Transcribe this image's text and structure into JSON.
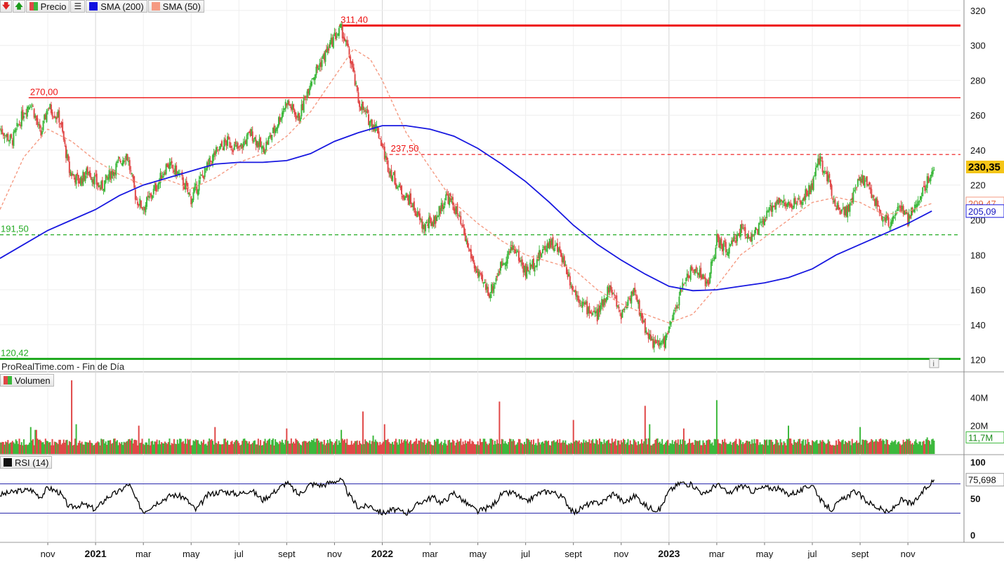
{
  "legend": {
    "price_label": "Precio",
    "sma200_label": "SMA (200)",
    "sma50_label": "SMA (50)"
  },
  "watermark": "ProRealTime.com - Fin de Día",
  "volume_label": "Volumen",
  "rsi_label": "RSI (14)",
  "colors": {
    "up": "#3cb83c",
    "down": "#e04848",
    "sma200": "#1818e0",
    "sma50": "#f59a82",
    "resistance_high": "#ee1111",
    "support_low": "#22aa22",
    "rsi_line": "#000000",
    "rsi_band": "#2222aa"
  },
  "chart_data": {
    "type": "line",
    "price_axis": {
      "ticks": [
        120,
        140,
        160,
        180,
        200,
        220,
        240,
        260,
        280,
        300,
        320
      ],
      "tick_labels": [
        "120",
        "140",
        "160",
        "180",
        "200",
        "220",
        "240",
        "260",
        "280",
        "300",
        "320"
      ],
      "ylim": [
        117,
        326
      ]
    },
    "x_axis": {
      "months": [
        {
          "label": "nov",
          "bold": false,
          "t": 2
        },
        {
          "label": "2021",
          "bold": true,
          "t": 4
        },
        {
          "label": "mar",
          "bold": false,
          "t": 6
        },
        {
          "label": "may",
          "bold": false,
          "t": 8
        },
        {
          "label": "jul",
          "bold": false,
          "t": 10
        },
        {
          "label": "sept",
          "bold": false,
          "t": 12
        },
        {
          "label": "nov",
          "bold": false,
          "t": 14
        },
        {
          "label": "2022",
          "bold": true,
          "t": 16
        },
        {
          "label": "mar",
          "bold": false,
          "t": 18
        },
        {
          "label": "may",
          "bold": false,
          "t": 20
        },
        {
          "label": "jul",
          "bold": false,
          "t": 22
        },
        {
          "label": "sept",
          "bold": false,
          "t": 24
        },
        {
          "label": "nov",
          "bold": false,
          "t": 26
        },
        {
          "label": "2023",
          "bold": true,
          "t": 28
        },
        {
          "label": "mar",
          "bold": false,
          "t": 30
        },
        {
          "label": "may",
          "bold": false,
          "t": 32
        },
        {
          "label": "jul",
          "bold": false,
          "t": 34
        },
        {
          "label": "sept",
          "bold": false,
          "t": 36
        },
        {
          "label": "nov",
          "bold": false,
          "t": 38
        }
      ],
      "range_months": [
        0,
        40.2
      ]
    },
    "levels": [
      {
        "value": 311.4,
        "label": "311,40",
        "style": "solid-thick",
        "color": "#ee1111",
        "start_t": 14.2
      },
      {
        "value": 270.0,
        "label": "270,00",
        "style": "solid",
        "color": "#ee1111",
        "start_t": 1.2
      },
      {
        "value": 237.5,
        "label": "237,50",
        "style": "dashed",
        "color": "#ee1111",
        "start_t": 16.3
      },
      {
        "value": 191.5,
        "label": "191,50",
        "style": "dashed",
        "color": "#22aa22",
        "start_t": 0
      },
      {
        "value": 120.42,
        "label": "120,42",
        "style": "solid-thick",
        "color": "#22aa22",
        "start_t": 0
      }
    ],
    "price_path": [
      [
        0,
        252
      ],
      [
        0.5,
        245
      ],
      [
        1.0,
        262
      ],
      [
        1.3,
        268
      ],
      [
        1.7,
        248
      ],
      [
        2.0,
        265
      ],
      [
        2.5,
        258
      ],
      [
        2.9,
        228
      ],
      [
        3.3,
        222
      ],
      [
        3.7,
        228
      ],
      [
        4.2,
        218
      ],
      [
        4.7,
        228
      ],
      [
        5.3,
        238
      ],
      [
        5.7,
        212
      ],
      [
        6.0,
        207
      ],
      [
        6.5,
        218
      ],
      [
        7.0,
        232
      ],
      [
        7.5,
        226
      ],
      [
        8.0,
        212
      ],
      [
        8.5,
        226
      ],
      [
        9.0,
        238
      ],
      [
        9.5,
        245
      ],
      [
        10.0,
        240
      ],
      [
        10.5,
        250
      ],
      [
        11.0,
        240
      ],
      [
        11.5,
        252
      ],
      [
        12.0,
        268
      ],
      [
        12.5,
        258
      ],
      [
        13.0,
        280
      ],
      [
        13.5,
        292
      ],
      [
        14.0,
        305
      ],
      [
        14.3,
        309
      ],
      [
        14.7,
        290
      ],
      [
        15.0,
        268
      ],
      [
        15.4,
        258
      ],
      [
        15.8,
        252
      ],
      [
        16.2,
        232
      ],
      [
        16.7,
        218
      ],
      [
        17.2,
        210
      ],
      [
        17.7,
        196
      ],
      [
        18.2,
        200
      ],
      [
        18.7,
        214
      ],
      [
        19.1,
        205
      ],
      [
        19.5,
        188
      ],
      [
        20.0,
        168
      ],
      [
        20.5,
        158
      ],
      [
        21.0,
        175
      ],
      [
        21.5,
        185
      ],
      [
        22.0,
        170
      ],
      [
        22.5,
        178
      ],
      [
        23.0,
        188
      ],
      [
        23.5,
        180
      ],
      [
        24.0,
        160
      ],
      [
        24.5,
        150
      ],
      [
        25.0,
        145
      ],
      [
        25.5,
        162
      ],
      [
        26.0,
        146
      ],
      [
        26.5,
        160
      ],
      [
        27.0,
        138
      ],
      [
        27.4,
        128
      ],
      [
        27.8,
        130
      ],
      [
        28.2,
        145
      ],
      [
        28.7,
        168
      ],
      [
        29.2,
        172
      ],
      [
        29.6,
        162
      ],
      [
        30.0,
        188
      ],
      [
        30.5,
        182
      ],
      [
        31.0,
        195
      ],
      [
        31.5,
        190
      ],
      [
        32.0,
        200
      ],
      [
        32.5,
        212
      ],
      [
        33.0,
        208
      ],
      [
        33.5,
        210
      ],
      [
        34.0,
        220
      ],
      [
        34.3,
        235
      ],
      [
        34.7,
        222
      ],
      [
        35.0,
        208
      ],
      [
        35.5,
        205
      ],
      [
        36.0,
        225
      ],
      [
        36.4,
        218
      ],
      [
        36.8,
        205
      ],
      [
        37.2,
        198
      ],
      [
        37.6,
        208
      ],
      [
        38.0,
        200
      ],
      [
        38.4,
        210
      ],
      [
        38.8,
        222
      ],
      [
        39.1,
        230.35
      ]
    ],
    "sma200_path": [
      [
        0,
        178
      ],
      [
        1,
        186
      ],
      [
        2,
        194
      ],
      [
        3,
        200
      ],
      [
        4,
        206
      ],
      [
        5,
        214
      ],
      [
        6,
        220
      ],
      [
        7,
        224
      ],
      [
        8,
        228
      ],
      [
        9,
        232
      ],
      [
        10,
        233
      ],
      [
        11,
        233
      ],
      [
        12,
        234
      ],
      [
        13,
        238
      ],
      [
        14,
        245
      ],
      [
        15,
        250
      ],
      [
        16,
        254
      ],
      [
        17,
        254
      ],
      [
        18,
        252
      ],
      [
        19,
        248
      ],
      [
        20,
        241
      ],
      [
        21,
        232
      ],
      [
        22,
        222
      ],
      [
        23,
        210
      ],
      [
        24,
        197
      ],
      [
        25,
        186
      ],
      [
        26,
        177
      ],
      [
        27,
        169
      ],
      [
        28,
        162
      ],
      [
        29,
        159.5
      ],
      [
        30,
        160
      ],
      [
        31,
        162
      ],
      [
        32,
        164
      ],
      [
        33,
        167
      ],
      [
        34,
        172
      ],
      [
        35,
        180
      ],
      [
        36,
        186
      ],
      [
        37,
        192
      ],
      [
        38,
        198
      ],
      [
        39,
        205.09
      ]
    ],
    "sma50_path": [
      [
        0,
        206
      ],
      [
        1,
        236
      ],
      [
        2,
        252
      ],
      [
        3,
        245
      ],
      [
        4,
        234
      ],
      [
        5,
        226
      ],
      [
        6,
        220
      ],
      [
        7,
        223
      ],
      [
        8,
        218
      ],
      [
        9,
        224
      ],
      [
        10,
        233
      ],
      [
        11,
        238
      ],
      [
        12,
        248
      ],
      [
        13,
        262
      ],
      [
        14,
        282
      ],
      [
        14.8,
        298
      ],
      [
        15.5,
        292
      ],
      [
        16,
        280
      ],
      [
        17,
        250
      ],
      [
        18,
        230
      ],
      [
        19,
        210
      ],
      [
        20,
        198
      ],
      [
        21,
        188
      ],
      [
        22,
        180
      ],
      [
        23,
        176
      ],
      [
        24,
        172
      ],
      [
        25,
        160
      ],
      [
        26,
        152
      ],
      [
        27,
        146
      ],
      [
        28,
        141
      ],
      [
        29,
        146
      ],
      [
        30,
        162
      ],
      [
        31,
        180
      ],
      [
        32,
        190
      ],
      [
        33,
        200
      ],
      [
        34,
        210
      ],
      [
        35,
        213
      ],
      [
        36,
        210
      ],
      [
        37,
        203
      ],
      [
        38,
        205
      ],
      [
        39,
        209.47
      ]
    ],
    "last_price": {
      "value": 230.35,
      "label": "230,35"
    },
    "sma50_last": {
      "value": 209.47,
      "label": "209,47"
    },
    "sma200_last": {
      "value": 205.09,
      "label": "205,09"
    },
    "volume": {
      "ticks": [
        20,
        40
      ],
      "tick_labels": [
        "20M",
        "40M"
      ],
      "ylim": [
        0,
        56
      ],
      "spikes": [
        [
          1.3,
          19
        ],
        [
          1.5,
          17
        ],
        [
          2.5,
          10
        ],
        [
          2.8,
          10
        ],
        [
          3.0,
          52
        ],
        [
          3.2,
          21
        ],
        [
          5.8,
          20
        ],
        [
          9.0,
          19
        ],
        [
          12.0,
          18
        ],
        [
          14.3,
          17
        ],
        [
          15.2,
          30
        ],
        [
          15.6,
          13
        ],
        [
          16.1,
          21
        ],
        [
          20.9,
          37
        ],
        [
          24.0,
          24
        ],
        [
          27.0,
          34
        ],
        [
          27.2,
          21
        ],
        [
          28.6,
          18
        ],
        [
          30.0,
          38
        ],
        [
          33.0,
          20
        ],
        [
          36.0,
          19
        ],
        [
          38.8,
          11.7
        ]
      ],
      "base": 6,
      "last": {
        "value": 11.7,
        "label": "11,7M"
      }
    },
    "rsi": {
      "ticks": [
        0,
        50,
        100
      ],
      "tick_labels": [
        "0",
        "50",
        "100"
      ],
      "ylim": [
        -10,
        110
      ],
      "bands": [
        30,
        70
      ],
      "path": [
        [
          0,
          55
        ],
        [
          0.7,
          60
        ],
        [
          1.3,
          62
        ],
        [
          1.7,
          52
        ],
        [
          2.0,
          65
        ],
        [
          2.5,
          58
        ],
        [
          2.9,
          38
        ],
        [
          3.5,
          42
        ],
        [
          4.0,
          35
        ],
        [
          4.5,
          52
        ],
        [
          5.0,
          60
        ],
        [
          5.4,
          70
        ],
        [
          5.7,
          48
        ],
        [
          6.0,
          32
        ],
        [
          6.6,
          45
        ],
        [
          7.2,
          55
        ],
        [
          7.7,
          52
        ],
        [
          8.2,
          34
        ],
        [
          8.7,
          55
        ],
        [
          9.3,
          60
        ],
        [
          10.0,
          56
        ],
        [
          10.5,
          62
        ],
        [
          11.0,
          48
        ],
        [
          11.6,
          62
        ],
        [
          12.0,
          72
        ],
        [
          12.5,
          55
        ],
        [
          13.0,
          70
        ],
        [
          13.5,
          68
        ],
        [
          14.0,
          74
        ],
        [
          14.3,
          75
        ],
        [
          14.6,
          55
        ],
        [
          15.0,
          38
        ],
        [
          15.5,
          40
        ],
        [
          16.0,
          30
        ],
        [
          16.5,
          35
        ],
        [
          17.0,
          30
        ],
        [
          17.6,
          45
        ],
        [
          18.1,
          52
        ],
        [
          18.5,
          44
        ],
        [
          19.0,
          58
        ],
        [
          19.5,
          44
        ],
        [
          20.0,
          32
        ],
        [
          20.6,
          40
        ],
        [
          21.0,
          56
        ],
        [
          21.5,
          58
        ],
        [
          22.0,
          45
        ],
        [
          22.6,
          58
        ],
        [
          23.1,
          60
        ],
        [
          23.6,
          50
        ],
        [
          24.0,
          30
        ],
        [
          24.6,
          42
        ],
        [
          25.2,
          45
        ],
        [
          25.7,
          58
        ],
        [
          26.1,
          44
        ],
        [
          26.6,
          54
        ],
        [
          27.1,
          38
        ],
        [
          27.6,
          34
        ],
        [
          28.0,
          60
        ],
        [
          28.5,
          72
        ],
        [
          29.0,
          68
        ],
        [
          29.5,
          55
        ],
        [
          30.0,
          70
        ],
        [
          30.5,
          56
        ],
        [
          31.0,
          68
        ],
        [
          31.5,
          60
        ],
        [
          32.0,
          65
        ],
        [
          32.5,
          64
        ],
        [
          33.0,
          56
        ],
        [
          33.5,
          60
        ],
        [
          34.0,
          70
        ],
        [
          34.4,
          45
        ],
        [
          34.8,
          35
        ],
        [
          35.3,
          50
        ],
        [
          35.8,
          60
        ],
        [
          36.2,
          48
        ],
        [
          36.7,
          38
        ],
        [
          37.2,
          30
        ],
        [
          37.7,
          48
        ],
        [
          38.2,
          42
        ],
        [
          38.7,
          62
        ],
        [
          39.1,
          75.698
        ]
      ],
      "last": {
        "value": 75.698,
        "label": "75,698"
      }
    }
  }
}
